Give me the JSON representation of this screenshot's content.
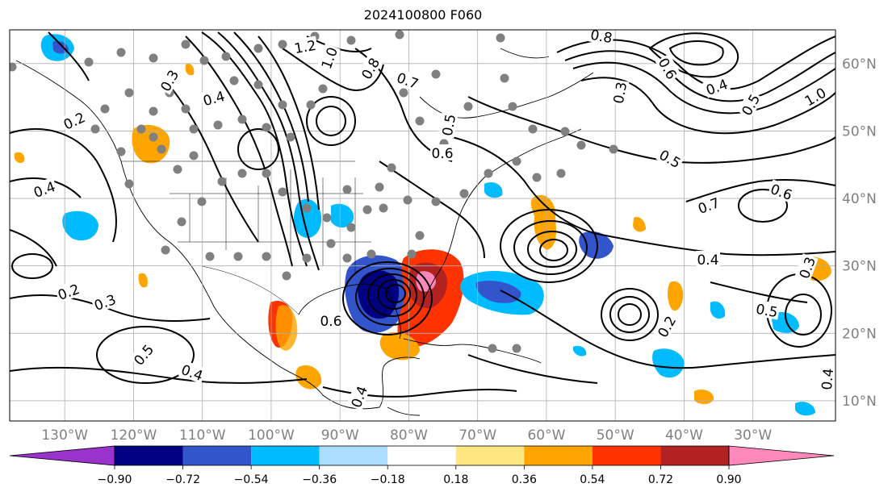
{
  "title": "2024100800 F060",
  "map": {
    "projection": "latitude-longitude",
    "lon_range": [
      -138,
      -18
    ],
    "lat_range": [
      7,
      65
    ],
    "gridlines": true,
    "lon_labels": [
      "130°W",
      "120°W",
      "110°W",
      "100°W",
      "90°W",
      "80°W",
      "70°W",
      "60°W",
      "50°W",
      "40°W",
      "30°W"
    ],
    "lat_labels": [
      "60°N",
      "50°N",
      "40°N",
      "30°N",
      "20°N",
      "10°N"
    ],
    "contour_color": "#000000",
    "contour_labels": [
      "1.2",
      "1.0",
      "0.8",
      "0.7",
      "0.5",
      "0.6",
      "0.4",
      "0.3",
      "0.2",
      "0.4",
      "0.3",
      "0.2",
      "0.4",
      "0.5",
      "0.6",
      "0.4",
      "0.5",
      "0.7",
      "1.0",
      "0.8",
      "0.6",
      "0.3",
      "0.4",
      "0.5",
      "0.4",
      "0.2",
      "0.6",
      "0.3",
      "0.5",
      "0.4"
    ],
    "observation_marker_color": "#808080"
  },
  "colorbar": {
    "orientation": "horizontal",
    "extend": "both",
    "ticks": [
      "−0.90",
      "−0.72",
      "−0.54",
      "−0.36",
      "−0.18",
      "0.18",
      "0.36",
      "0.54",
      "0.72",
      "0.90"
    ],
    "colors": [
      "#9933cc",
      "#000080",
      "#3355cc",
      "#00bbff",
      "#aaddff",
      "#ffffff",
      "#ffe680",
      "#ffa500",
      "#ff3300",
      "#b22222",
      "#ff88bb"
    ]
  }
}
